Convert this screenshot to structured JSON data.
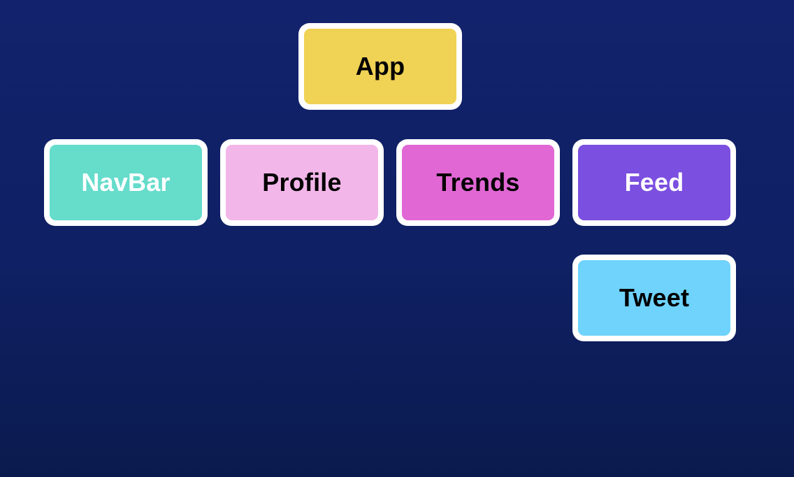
{
  "diagram": {
    "nodes": [
      {
        "id": "app",
        "label": "App",
        "fill": "#f0d255",
        "text_color": "#000000"
      },
      {
        "id": "navbar",
        "label": "NavBar",
        "fill": "#66dccb",
        "text_color": "#ffffff"
      },
      {
        "id": "profile",
        "label": "Profile",
        "fill": "#f2b6e9",
        "text_color": "#000000"
      },
      {
        "id": "trends",
        "label": "Trends",
        "fill": "#e067d4",
        "text_color": "#000000"
      },
      {
        "id": "feed",
        "label": "Feed",
        "fill": "#7b4fe0",
        "text_color": "#ffffff"
      },
      {
        "id": "tweet",
        "label": "Tweet",
        "fill": "#6fd3fc",
        "text_color": "#000000"
      }
    ],
    "colors": {
      "background": "#10216a",
      "node_border": "#ffffff"
    }
  }
}
